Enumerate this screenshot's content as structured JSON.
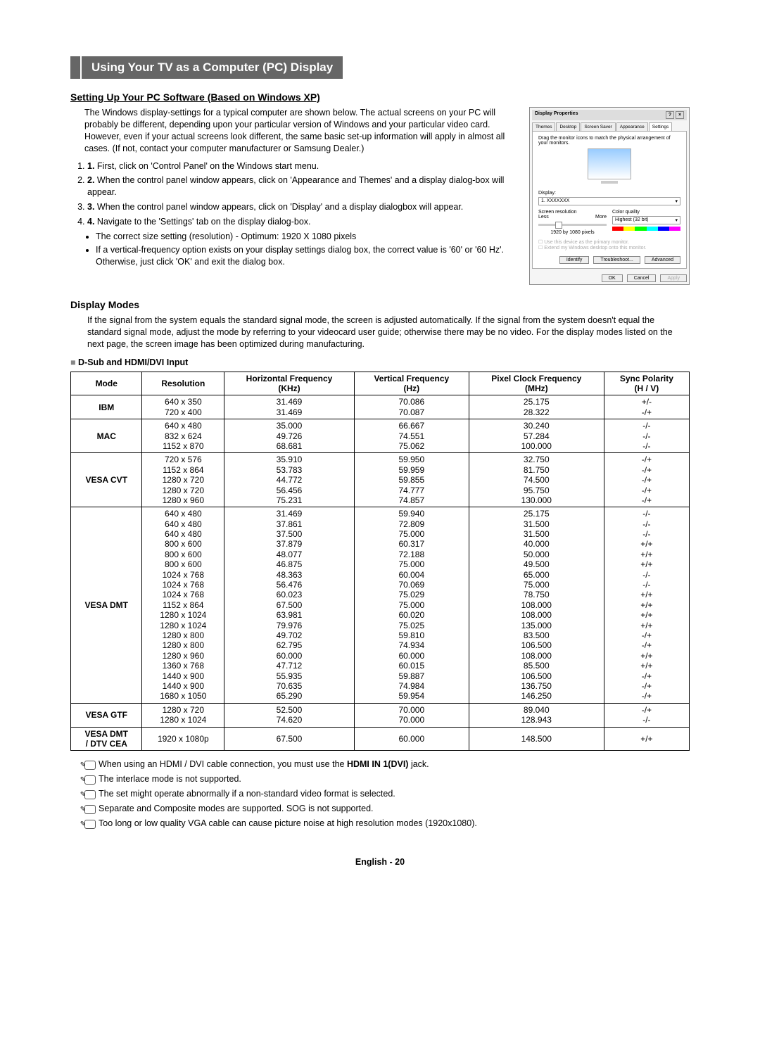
{
  "title": "Using Your TV as a Computer (PC) Display",
  "section1": {
    "heading": "Setting Up Your PC Software (Based on Windows XP)",
    "intro": "The Windows display-settings for a typical computer are shown below. The actual screens on your PC will probably be different, depending upon your particular version of Windows and your particular video card. However, even if your actual screens look different, the same basic set-up information will apply in almost all cases. (If not, contact your computer manufacturer or Samsung Dealer.)",
    "steps": [
      "First, click on 'Control Panel' on the Windows start menu.",
      "When the control panel window appears, click on 'Appearance and Themes' and a display dialog-box will appear.",
      "When the control panel window appears, click on 'Display' and a display dialogbox will appear.",
      "Navigate to the 'Settings' tab on the display dialog-box."
    ],
    "bullets": [
      "The correct size setting (resolution) - Optimum: 1920 X 1080 pixels",
      "If a vertical-frequency option exists on your display settings dialog box, the correct value is '60' or '60 Hz'. Otherwise, just click 'OK' and exit the dialog box."
    ]
  },
  "win": {
    "title": "Display Properties",
    "tabs": [
      "Themes",
      "Desktop",
      "Screen Saver",
      "Appearance",
      "Settings"
    ],
    "drag": "Drag the monitor icons to match the physical arrangement of your monitors.",
    "display_label": "Display:",
    "display_value": "1. XXXXXXX",
    "res_label": "Screen resolution",
    "less": "Less",
    "more": "More",
    "res_value": "1920 by 1080 pixels",
    "quality_label": "Color quality",
    "quality_value": "Highest (32 bit)",
    "cb1": "Use this device as the primary monitor.",
    "cb2": "Extend my Windows desktop onto this monitor.",
    "btns_top": [
      "Identify",
      "Troubleshoot...",
      "Advanced"
    ],
    "btns_bottom": [
      "OK",
      "Cancel",
      "Apply"
    ]
  },
  "section2": {
    "heading": "Display Modes",
    "intro": "If the signal from the system equals the standard signal mode, the screen is adjusted automatically. If the signal from the system doesn't equal the standard signal mode, adjust the mode by referring to your videocard user guide; otherwise there may be no video. For the display modes listed on the next page, the screen image has been optimized during manufacturing.",
    "subhead": "D-Sub and HDMI/DVI Input"
  },
  "table": {
    "headers": [
      "Mode",
      "Resolution",
      "Horizontal Frequency (KHz)",
      "Vertical Frequency (Hz)",
      "Pixel Clock Frequency (MHz)",
      "Sync Polarity (H / V)"
    ],
    "groups": [
      {
        "mode": "IBM",
        "rows": [
          [
            "640 x 350",
            "31.469",
            "70.086",
            "25.175",
            "+/-"
          ],
          [
            "720 x 400",
            "31.469",
            "70.087",
            "28.322",
            "-/+"
          ]
        ]
      },
      {
        "mode": "MAC",
        "rows": [
          [
            "640 x 480",
            "35.000",
            "66.667",
            "30.240",
            "-/-"
          ],
          [
            "832 x 624",
            "49.726",
            "74.551",
            "57.284",
            "-/-"
          ],
          [
            "1152 x 870",
            "68.681",
            "75.062",
            "100.000",
            "-/-"
          ]
        ]
      },
      {
        "mode": "VESA CVT",
        "rows": [
          [
            "720 x 576",
            "35.910",
            "59.950",
            "32.750",
            "-/+"
          ],
          [
            "1152 x 864",
            "53.783",
            "59.959",
            "81.750",
            "-/+"
          ],
          [
            "1280 x 720",
            "44.772",
            "59.855",
            "74.500",
            "-/+"
          ],
          [
            "1280 x 720",
            "56.456",
            "74.777",
            "95.750",
            "-/+"
          ],
          [
            "1280 x 960",
            "75.231",
            "74.857",
            "130.000",
            "-/+"
          ]
        ]
      },
      {
        "mode": "VESA DMT",
        "rows": [
          [
            "640 x 480",
            "31.469",
            "59.940",
            "25.175",
            "-/-"
          ],
          [
            "640 x 480",
            "37.861",
            "72.809",
            "31.500",
            "-/-"
          ],
          [
            "640 x 480",
            "37.500",
            "75.000",
            "31.500",
            "-/-"
          ],
          [
            "800 x 600",
            "37.879",
            "60.317",
            "40.000",
            "+/+"
          ],
          [
            "800 x 600",
            "48.077",
            "72.188",
            "50.000",
            "+/+"
          ],
          [
            "800 x 600",
            "46.875",
            "75.000",
            "49.500",
            "+/+"
          ],
          [
            "1024 x 768",
            "48.363",
            "60.004",
            "65.000",
            "-/-"
          ],
          [
            "1024 x 768",
            "56.476",
            "70.069",
            "75.000",
            "-/-"
          ],
          [
            "1024 x 768",
            "60.023",
            "75.029",
            "78.750",
            "+/+"
          ],
          [
            "1152 x 864",
            "67.500",
            "75.000",
            "108.000",
            "+/+"
          ],
          [
            "1280 x 1024",
            "63.981",
            "60.020",
            "108.000",
            "+/+"
          ],
          [
            "1280 x 1024",
            "79.976",
            "75.025",
            "135.000",
            "+/+"
          ],
          [
            "1280 x 800",
            "49.702",
            "59.810",
            "83.500",
            "-/+"
          ],
          [
            "1280 x 800",
            "62.795",
            "74.934",
            "106.500",
            "-/+"
          ],
          [
            "1280 x 960",
            "60.000",
            "60.000",
            "108.000",
            "+/+"
          ],
          [
            "1360 x 768",
            "47.712",
            "60.015",
            "85.500",
            "+/+"
          ],
          [
            "1440 x 900",
            "55.935",
            "59.887",
            "106.500",
            "-/+"
          ],
          [
            "1440 x 900",
            "70.635",
            "74.984",
            "136.750",
            "-/+"
          ],
          [
            "1680 x 1050",
            "65.290",
            "59.954",
            "146.250",
            "-/+"
          ]
        ]
      },
      {
        "mode": "VESA GTF",
        "rows": [
          [
            "1280 x 720",
            "52.500",
            "70.000",
            "89.040",
            "-/+"
          ],
          [
            "1280 x 1024",
            "74.620",
            "70.000",
            "128.943",
            "-/-"
          ]
        ]
      },
      {
        "mode": "VESA DMT / DTV CEA",
        "rows": [
          [
            "1920 x 1080p",
            "67.500",
            "60.000",
            "148.500",
            "+/+"
          ]
        ]
      }
    ]
  },
  "notes": [
    {
      "pre": "When using an HDMI / DVI cable connection, you must use the ",
      "bold": "HDMI IN 1(DVI)",
      "post": " jack."
    },
    {
      "pre": "The interlace mode is not supported.",
      "bold": "",
      "post": ""
    },
    {
      "pre": "The set might operate abnormally if a non-standard video format is selected.",
      "bold": "",
      "post": ""
    },
    {
      "pre": "Separate and Composite modes are supported. SOG is not supported.",
      "bold": "",
      "post": ""
    },
    {
      "pre": "Too long or low quality VGA cable can cause picture noise at high resolution modes (1920x1080).",
      "bold": "",
      "post": ""
    }
  ],
  "footer": "English - 20"
}
